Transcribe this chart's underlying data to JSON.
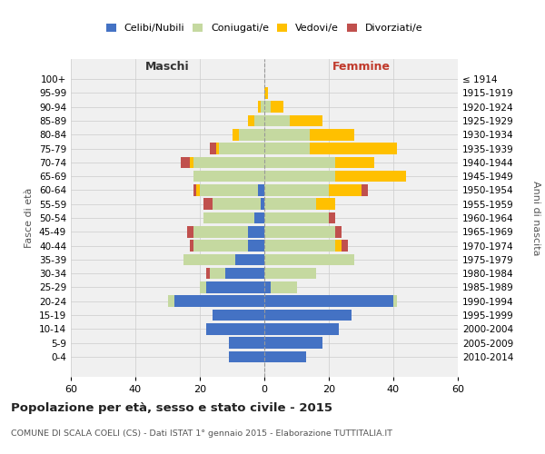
{
  "age_groups": [
    "0-4",
    "5-9",
    "10-14",
    "15-19",
    "20-24",
    "25-29",
    "30-34",
    "35-39",
    "40-44",
    "45-49",
    "50-54",
    "55-59",
    "60-64",
    "65-69",
    "70-74",
    "75-79",
    "80-84",
    "85-89",
    "90-94",
    "95-99",
    "100+"
  ],
  "birth_years": [
    "2010-2014",
    "2005-2009",
    "2000-2004",
    "1995-1999",
    "1990-1994",
    "1985-1989",
    "1980-1984",
    "1975-1979",
    "1970-1974",
    "1965-1969",
    "1960-1964",
    "1955-1959",
    "1950-1954",
    "1945-1949",
    "1940-1944",
    "1935-1939",
    "1930-1934",
    "1925-1929",
    "1920-1924",
    "1915-1919",
    "≤ 1914"
  ],
  "maschi": {
    "celibi": [
      11,
      11,
      18,
      16,
      28,
      18,
      12,
      9,
      5,
      5,
      3,
      1,
      2,
      0,
      0,
      0,
      0,
      0,
      0,
      0,
      0
    ],
    "coniugati": [
      0,
      0,
      0,
      0,
      2,
      2,
      5,
      16,
      17,
      17,
      16,
      15,
      18,
      22,
      22,
      14,
      8,
      3,
      1,
      0,
      0
    ],
    "vedovi": [
      0,
      0,
      0,
      0,
      0,
      0,
      0,
      0,
      0,
      0,
      0,
      0,
      1,
      0,
      1,
      1,
      2,
      2,
      1,
      0,
      0
    ],
    "divorziati": [
      0,
      0,
      0,
      0,
      0,
      0,
      1,
      0,
      1,
      2,
      0,
      3,
      1,
      0,
      3,
      2,
      0,
      0,
      0,
      0,
      0
    ]
  },
  "femmine": {
    "nubili": [
      13,
      18,
      23,
      27,
      40,
      2,
      0,
      0,
      0,
      0,
      0,
      0,
      0,
      0,
      0,
      0,
      0,
      0,
      0,
      0,
      0
    ],
    "coniugate": [
      0,
      0,
      0,
      0,
      1,
      8,
      16,
      28,
      22,
      22,
      20,
      16,
      20,
      22,
      22,
      14,
      14,
      8,
      2,
      0,
      0
    ],
    "vedove": [
      0,
      0,
      0,
      0,
      0,
      0,
      0,
      0,
      2,
      0,
      0,
      6,
      10,
      22,
      12,
      27,
      14,
      10,
      4,
      1,
      0
    ],
    "divorziate": [
      0,
      0,
      0,
      0,
      0,
      0,
      0,
      0,
      2,
      2,
      2,
      0,
      2,
      0,
      0,
      0,
      0,
      0,
      0,
      0,
      0
    ]
  },
  "colors": {
    "celibi_nubili": "#4472c4",
    "coniugati_e": "#c5d9a0",
    "vedovi_e": "#ffc000",
    "divorziati_e": "#c0504d"
  },
  "xlim": 60,
  "title": "Popolazione per età, sesso e stato civile - 2015",
  "subtitle": "COMUNE DI SCALA COELI (CS) - Dati ISTAT 1° gennaio 2015 - Elaborazione TUTTITALIA.IT",
  "ylabel_left": "Fasce di età",
  "ylabel_right": "Anni di nascita",
  "xlabel_left": "Maschi",
  "xlabel_right": "Femmine",
  "background_color": "#f0f0f0",
  "grid_color": "#cccccc"
}
